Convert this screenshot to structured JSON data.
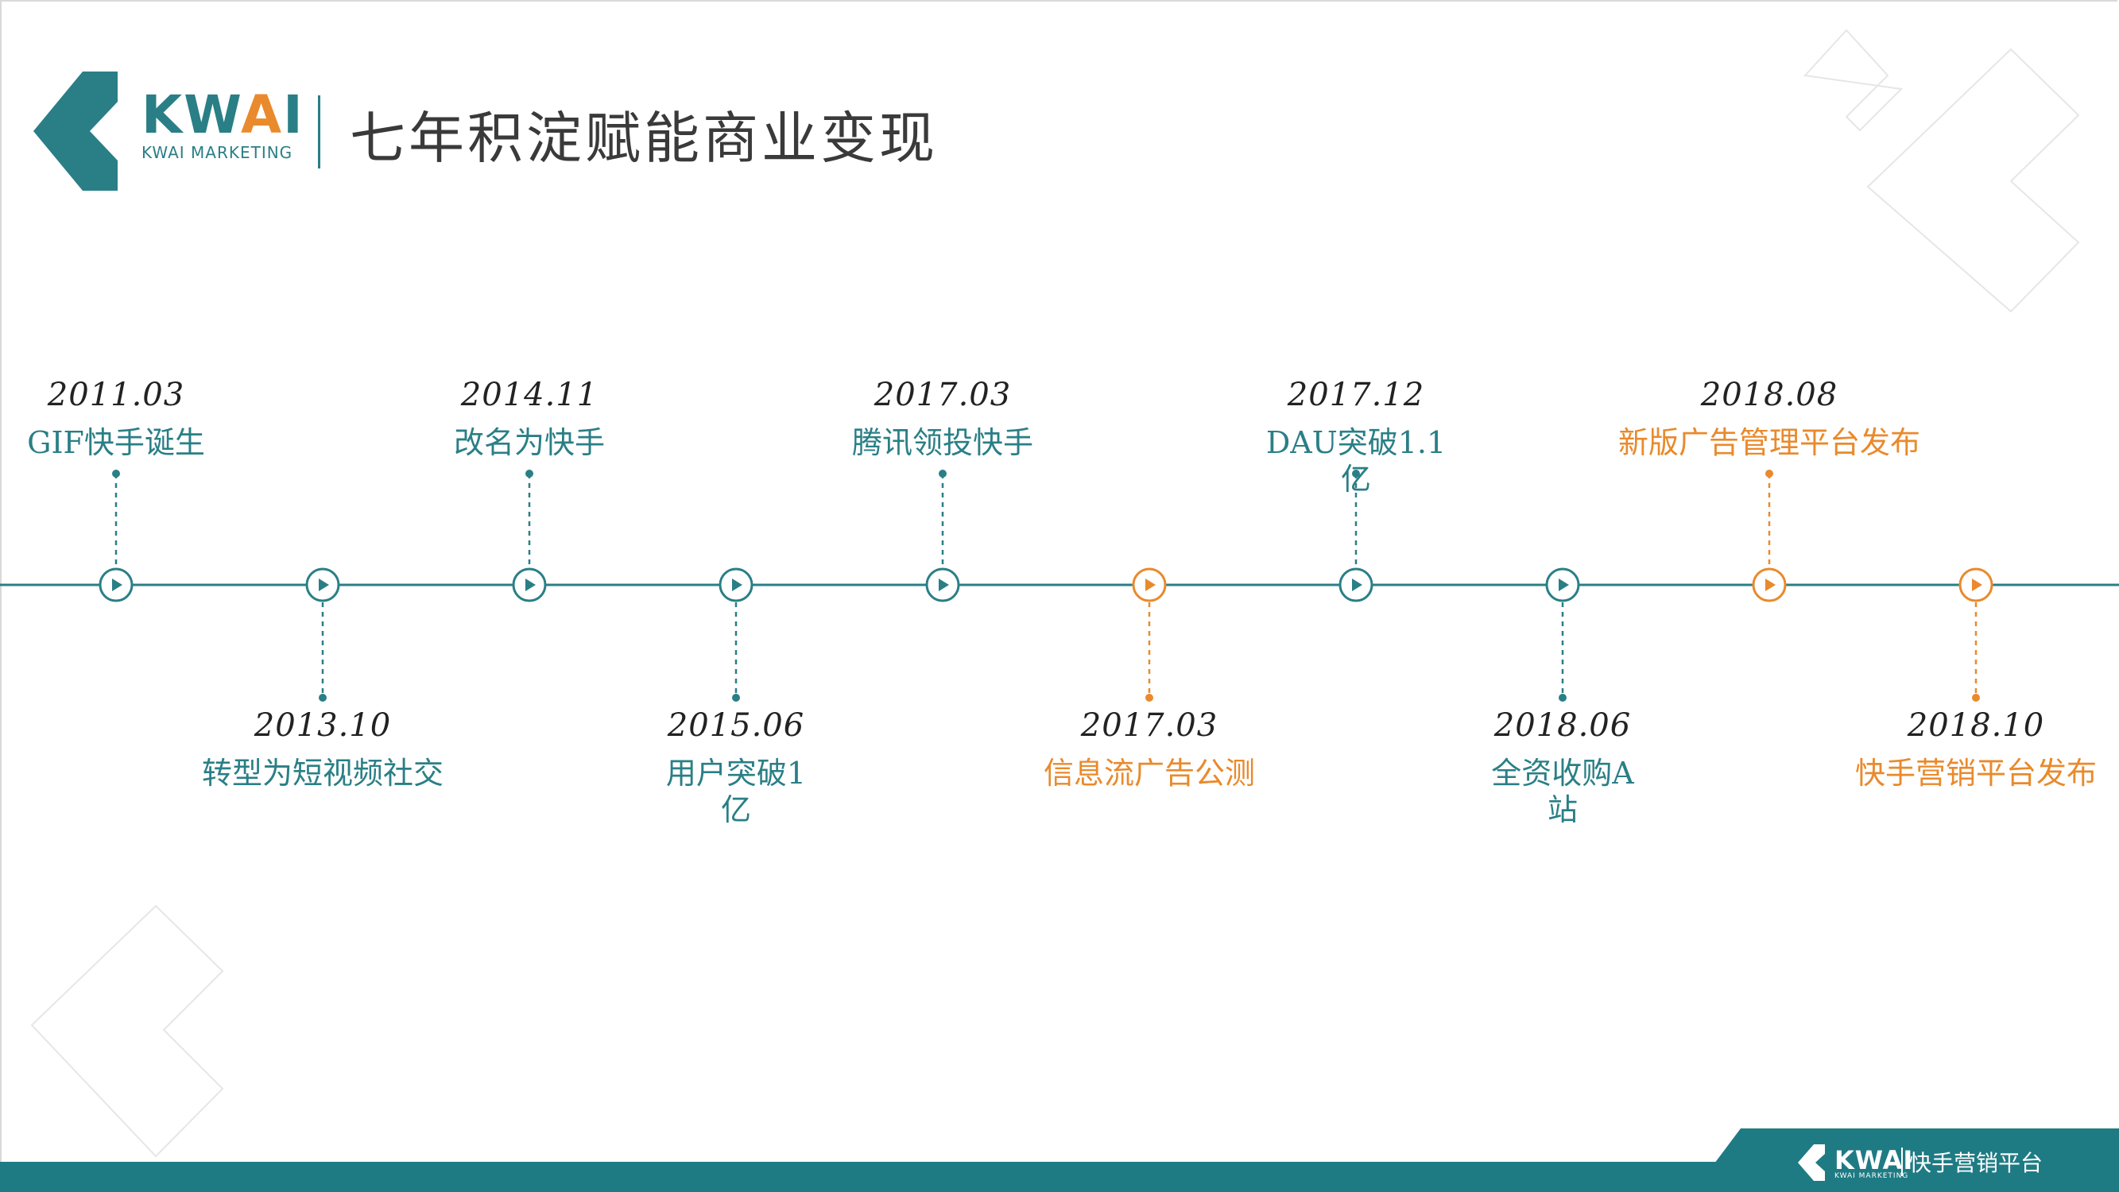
{
  "header": {
    "logo": {
      "word_part1": "KW",
      "word_accent": "A",
      "word_part2": "I",
      "subtitle": "KWAI MARKETING"
    },
    "title": "七年积淀赋能商业变现"
  },
  "colors": {
    "teal": "#2a7f86",
    "orange": "#e98a2c",
    "text_dark": "#222222",
    "footer_bg": "#1f7b83"
  },
  "timeline": {
    "milestones": [
      {
        "date": "2011.03",
        "label": "GIF快手诞生",
        "color": "teal",
        "position": "above"
      },
      {
        "date": "2013.10",
        "label": "转型为短视频社交",
        "color": "teal",
        "position": "below"
      },
      {
        "date": "2014.11",
        "label": "改名为快手",
        "color": "teal",
        "position": "above"
      },
      {
        "date": "2015.06",
        "label": "用户突破1\n亿",
        "color": "teal",
        "position": "below"
      },
      {
        "date": "2017.03",
        "label": "腾讯领投快手",
        "color": "teal",
        "position": "above"
      },
      {
        "date": "2017.03",
        "label": "信息流广告公测",
        "color": "orange",
        "position": "below"
      },
      {
        "date": "2017.12",
        "label": "DAU突破1.1\n亿",
        "color": "teal",
        "position": "above"
      },
      {
        "date": "2018.06",
        "label": "全资收购A\n站",
        "color": "teal",
        "position": "below"
      },
      {
        "date": "2018.08",
        "label": "新版广告管理平台发布",
        "color": "orange",
        "position": "above"
      },
      {
        "date": "2018.10",
        "label": "快手营销平台发布",
        "color": "orange",
        "position": "below"
      }
    ]
  },
  "footer": {
    "logo_word": "KWAI",
    "logo_sub": "KWAI MARKETING",
    "text": "快手营销平台"
  }
}
